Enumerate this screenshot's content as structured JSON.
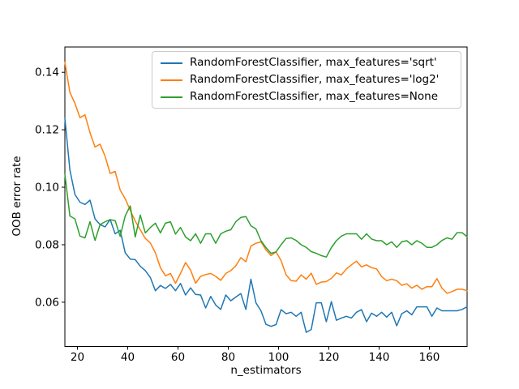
{
  "figure": {
    "background": "#ffffff"
  },
  "chart_data": {
    "type": "line",
    "title": "",
    "xlabel": "n_estimators",
    "ylabel": "OOB error rate",
    "xlim": [
      15,
      175
    ],
    "ylim": [
      0.0446,
      0.1488
    ],
    "x_ticks": [
      20,
      40,
      60,
      80,
      100,
      120,
      140,
      160
    ],
    "y_ticks": [
      0.06,
      0.08,
      0.1,
      0.12,
      0.14
    ],
    "y_tick_labels": [
      "0.06",
      "0.08",
      "0.10",
      "0.12",
      "0.14"
    ],
    "grid": false,
    "legend_position": "upper right",
    "line_width": 1.5,
    "x": [
      15,
      17,
      19,
      21,
      23,
      25,
      27,
      29,
      31,
      33,
      35,
      37,
      39,
      41,
      43,
      45,
      47,
      49,
      51,
      53,
      55,
      57,
      59,
      61,
      63,
      65,
      67,
      69,
      71,
      73,
      75,
      77,
      79,
      81,
      83,
      85,
      87,
      89,
      91,
      93,
      95,
      97,
      99,
      101,
      103,
      105,
      107,
      109,
      111,
      113,
      115,
      117,
      119,
      121,
      123,
      125,
      127,
      129,
      131,
      133,
      135,
      137,
      139,
      141,
      143,
      145,
      147,
      149,
      151,
      153,
      155,
      157,
      159,
      161,
      163,
      165,
      167,
      169,
      171,
      173,
      175
    ],
    "series": [
      {
        "name": "RandomForestClassifier, max_features='sqrt'",
        "color": "#1f77b4",
        "values": [
          0.124,
          0.106,
          0.0975,
          0.0948,
          0.094,
          0.0955,
          0.089,
          0.087,
          0.0862,
          0.0888,
          0.0838,
          0.085,
          0.0772,
          0.075,
          0.0748,
          0.0725,
          0.071,
          0.0686,
          0.064,
          0.0658,
          0.0648,
          0.0662,
          0.064,
          0.0665,
          0.0625,
          0.065,
          0.0627,
          0.0625,
          0.058,
          0.062,
          0.059,
          0.0575,
          0.0625,
          0.0605,
          0.0618,
          0.063,
          0.0575,
          0.068,
          0.0598,
          0.057,
          0.0523,
          0.0516,
          0.0522,
          0.0574,
          0.056,
          0.0565,
          0.0551,
          0.0565,
          0.0495,
          0.0505,
          0.0598,
          0.0598,
          0.0532,
          0.0602,
          0.0537,
          0.0545,
          0.0551,
          0.0545,
          0.0565,
          0.0574,
          0.0532,
          0.0562,
          0.0551,
          0.0565,
          0.0548,
          0.0565,
          0.0518,
          0.056,
          0.057,
          0.0556,
          0.0584,
          0.0584,
          0.0584,
          0.0551,
          0.058,
          0.057,
          0.057,
          0.057,
          0.057,
          0.0575,
          0.0584
        ]
      },
      {
        "name": "RandomForestClassifier, max_features='log2'",
        "color": "#ff7f0e",
        "values": [
          0.1435,
          0.133,
          0.1292,
          0.1242,
          0.1252,
          0.119,
          0.114,
          0.115,
          0.1108,
          0.1048,
          0.1055,
          0.099,
          0.096,
          0.092,
          0.0882,
          0.0852,
          0.0822,
          0.0806,
          0.0772,
          0.072,
          0.0692,
          0.07,
          0.0666,
          0.07,
          0.0738,
          0.0712,
          0.0666,
          0.069,
          0.0696,
          0.07,
          0.069,
          0.0676,
          0.07,
          0.071,
          0.0727,
          0.0755,
          0.0741,
          0.0795,
          0.0805,
          0.081,
          0.0782,
          0.0762,
          0.0775,
          0.0745,
          0.0695,
          0.0675,
          0.0673,
          0.0695,
          0.068,
          0.0701,
          0.0662,
          0.067,
          0.0672,
          0.0683,
          0.0702,
          0.0695,
          0.0716,
          0.073,
          0.0743,
          0.0723,
          0.073,
          0.072,
          0.0716,
          0.0689,
          0.0675,
          0.068,
          0.0675,
          0.0659,
          0.0664,
          0.0649,
          0.0659,
          0.0645,
          0.0654,
          0.0654,
          0.0682,
          0.0649,
          0.0631,
          0.0637,
          0.0645,
          0.0645,
          0.064
        ]
      },
      {
        "name": "RandomForestClassifier, max_features=None",
        "color": "#2ca02c",
        "values": [
          0.1045,
          0.09,
          0.089,
          0.083,
          0.0824,
          0.088,
          0.0815,
          0.087,
          0.088,
          0.0887,
          0.0884,
          0.0829,
          0.09,
          0.0935,
          0.0827,
          0.0903,
          0.0841,
          0.086,
          0.0875,
          0.0841,
          0.0875,
          0.088,
          0.0837,
          0.086,
          0.0827,
          0.0814,
          0.0838,
          0.0805,
          0.0838,
          0.0838,
          0.0805,
          0.0838,
          0.0847,
          0.0852,
          0.088,
          0.0895,
          0.0898,
          0.0866,
          0.0855,
          0.0814,
          0.079,
          0.077,
          0.0775,
          0.08,
          0.0822,
          0.0824,
          0.0815,
          0.08,
          0.0791,
          0.0776,
          0.077,
          0.0762,
          0.0757,
          0.079,
          0.0814,
          0.083,
          0.0838,
          0.0838,
          0.0838,
          0.0819,
          0.0838,
          0.082,
          0.0814,
          0.0814,
          0.08,
          0.081,
          0.0791,
          0.081,
          0.0814,
          0.08,
          0.0814,
          0.0805,
          0.0791,
          0.0791,
          0.08,
          0.0815,
          0.0824,
          0.0819,
          0.0842,
          0.0842,
          0.0828
        ]
      }
    ]
  }
}
